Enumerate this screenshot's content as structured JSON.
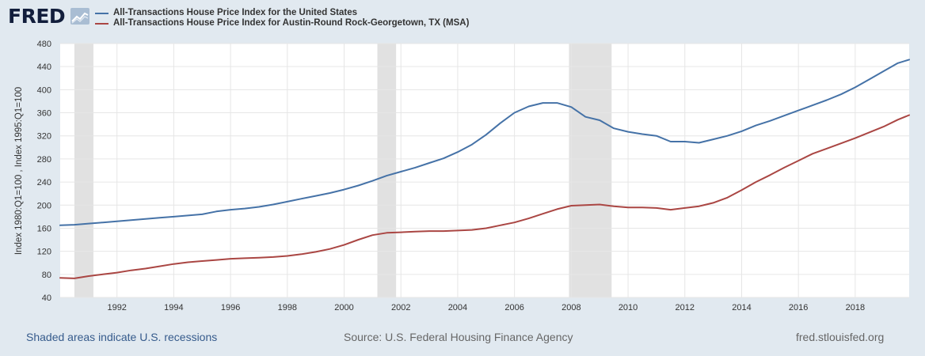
{
  "header": {
    "logo_text": "FRED",
    "logo_icon": "line-chart-icon"
  },
  "colors": {
    "background": "#e1e9f0",
    "plot_background": "#ffffff",
    "gridline": "#e6e6e6",
    "recession_shade": "#e1e1e1",
    "us_series": "#4572a7",
    "austin_series": "#aa4643"
  },
  "footer": {
    "recession_note": "Shaded areas indicate U.S. recessions",
    "source": "Source: U.S. Federal Housing Finance Agency",
    "site": "fred.stlouisfed.org"
  },
  "chart_data": {
    "type": "line",
    "ylabel": "Index 1980:Q1=100 , Index 1995:Q1=100",
    "xlim": [
      1990.0,
      2019.9
    ],
    "ylim": [
      40,
      480
    ],
    "yticks": [
      40,
      80,
      120,
      160,
      200,
      240,
      280,
      320,
      360,
      400,
      440,
      480
    ],
    "xticks": [
      1992,
      1994,
      1996,
      1998,
      2000,
      2002,
      2004,
      2006,
      2008,
      2010,
      2012,
      2014,
      2016,
      2018
    ],
    "grid": true,
    "legend_position": "top",
    "recessions": [
      [
        1990.5,
        1991.17
      ],
      [
        2001.17,
        2001.83
      ],
      [
        2007.92,
        2009.42
      ]
    ],
    "series": [
      {
        "name": "All-Transactions House Price Index for the United States",
        "color": "#4572a7",
        "points": [
          [
            1990.0,
            165
          ],
          [
            1990.5,
            166
          ],
          [
            1991.0,
            168
          ],
          [
            1991.5,
            170
          ],
          [
            1992.0,
            172
          ],
          [
            1992.5,
            174
          ],
          [
            1993.0,
            176
          ],
          [
            1993.5,
            178
          ],
          [
            1994.0,
            180
          ],
          [
            1994.5,
            182
          ],
          [
            1995.0,
            184
          ],
          [
            1995.5,
            189
          ],
          [
            1996.0,
            192
          ],
          [
            1996.5,
            194
          ],
          [
            1997.0,
            197
          ],
          [
            1997.5,
            201
          ],
          [
            1998.0,
            206
          ],
          [
            1998.5,
            211
          ],
          [
            1999.0,
            216
          ],
          [
            1999.5,
            221
          ],
          [
            2000.0,
            227
          ],
          [
            2000.5,
            234
          ],
          [
            2001.0,
            242
          ],
          [
            2001.5,
            251
          ],
          [
            2002.0,
            258
          ],
          [
            2002.5,
            265
          ],
          [
            2003.0,
            273
          ],
          [
            2003.5,
            281
          ],
          [
            2004.0,
            292
          ],
          [
            2004.5,
            305
          ],
          [
            2005.0,
            322
          ],
          [
            2005.5,
            342
          ],
          [
            2006.0,
            360
          ],
          [
            2006.5,
            371
          ],
          [
            2007.0,
            377
          ],
          [
            2007.5,
            377
          ],
          [
            2008.0,
            370
          ],
          [
            2008.5,
            353
          ],
          [
            2009.0,
            347
          ],
          [
            2009.5,
            333
          ],
          [
            2010.0,
            327
          ],
          [
            2010.5,
            323
          ],
          [
            2011.0,
            320
          ],
          [
            2011.5,
            310
          ],
          [
            2012.0,
            310
          ],
          [
            2012.5,
            308
          ],
          [
            2013.0,
            314
          ],
          [
            2013.5,
            320
          ],
          [
            2014.0,
            328
          ],
          [
            2014.5,
            338
          ],
          [
            2015.0,
            346
          ],
          [
            2015.5,
            355
          ],
          [
            2016.0,
            364
          ],
          [
            2016.5,
            373
          ],
          [
            2017.0,
            382
          ],
          [
            2017.5,
            392
          ],
          [
            2018.0,
            404
          ],
          [
            2018.5,
            418
          ],
          [
            2019.0,
            432
          ],
          [
            2019.5,
            446
          ],
          [
            2019.9,
            452
          ]
        ]
      },
      {
        "name": "All-Transactions House Price Index for Austin-Round Rock-Georgetown, TX (MSA)",
        "color": "#aa4643",
        "points": [
          [
            1990.0,
            74
          ],
          [
            1990.5,
            73
          ],
          [
            1991.0,
            77
          ],
          [
            1991.5,
            80
          ],
          [
            1992.0,
            83
          ],
          [
            1992.5,
            87
          ],
          [
            1993.0,
            90
          ],
          [
            1993.5,
            94
          ],
          [
            1994.0,
            98
          ],
          [
            1994.5,
            101
          ],
          [
            1995.0,
            103
          ],
          [
            1995.5,
            105
          ],
          [
            1996.0,
            107
          ],
          [
            1996.5,
            108
          ],
          [
            1997.0,
            109
          ],
          [
            1997.5,
            110
          ],
          [
            1998.0,
            112
          ],
          [
            1998.5,
            115
          ],
          [
            1999.0,
            119
          ],
          [
            1999.5,
            124
          ],
          [
            2000.0,
            131
          ],
          [
            2000.5,
            140
          ],
          [
            2001.0,
            148
          ],
          [
            2001.5,
            152
          ],
          [
            2002.0,
            153
          ],
          [
            2002.5,
            154
          ],
          [
            2003.0,
            155
          ],
          [
            2003.5,
            155
          ],
          [
            2004.0,
            156
          ],
          [
            2004.5,
            157
          ],
          [
            2005.0,
            160
          ],
          [
            2005.5,
            165
          ],
          [
            2006.0,
            170
          ],
          [
            2006.5,
            177
          ],
          [
            2007.0,
            185
          ],
          [
            2007.5,
            193
          ],
          [
            2008.0,
            199
          ],
          [
            2008.5,
            200
          ],
          [
            2009.0,
            201
          ],
          [
            2009.5,
            198
          ],
          [
            2010.0,
            196
          ],
          [
            2010.5,
            196
          ],
          [
            2011.0,
            195
          ],
          [
            2011.5,
            192
          ],
          [
            2012.0,
            195
          ],
          [
            2012.5,
            198
          ],
          [
            2013.0,
            204
          ],
          [
            2013.5,
            213
          ],
          [
            2014.0,
            226
          ],
          [
            2014.5,
            240
          ],
          [
            2015.0,
            252
          ],
          [
            2015.5,
            265
          ],
          [
            2016.0,
            277
          ],
          [
            2016.5,
            289
          ],
          [
            2017.0,
            298
          ],
          [
            2017.5,
            307
          ],
          [
            2018.0,
            316
          ],
          [
            2018.5,
            326
          ],
          [
            2019.0,
            336
          ],
          [
            2019.5,
            348
          ],
          [
            2019.9,
            356
          ]
        ]
      }
    ]
  }
}
